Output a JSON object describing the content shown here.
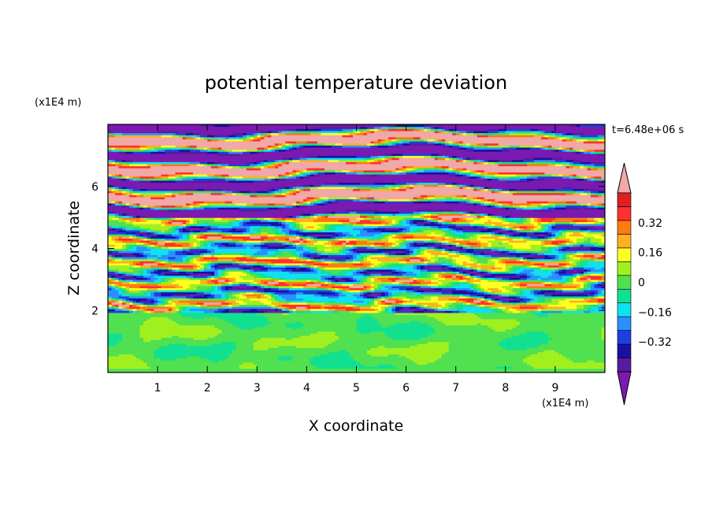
{
  "chart_data": {
    "type": "heatmap",
    "title": "potential temperature deviation",
    "xlabel": "X coordinate",
    "ylabel": "Z coordinate",
    "x_unit": "(x1E4 m)",
    "y_unit": "(x1E4 m)",
    "time_label": "t=6.48e+06 s",
    "xlim": [
      0,
      10
    ],
    "ylim": [
      0,
      8
    ],
    "x_ticks": [
      1,
      2,
      3,
      4,
      5,
      6,
      7,
      8,
      9
    ],
    "y_ticks": [
      2,
      4,
      6
    ],
    "colorbar": {
      "levels": [
        -0.48,
        -0.4,
        -0.32,
        -0.24,
        -0.16,
        -0.08,
        0,
        0.08,
        0.16,
        0.24,
        0.32,
        0.4,
        0.48
      ],
      "tick_labels": [
        "0.32",
        "0.16",
        "0",
        "−0.16",
        "−0.32"
      ],
      "tick_values": [
        0.32,
        0.16,
        0,
        -0.16,
        -0.32
      ],
      "colors_low_to_high": [
        "#5a1aa0",
        "#1c0fa0",
        "#1e3fe0",
        "#2a90ff",
        "#10e0f0",
        "#10e090",
        "#50e050",
        "#a0f020",
        "#ffff20",
        "#ffb020",
        "#ff7a10",
        "#ff3030",
        "#e02020"
      ],
      "under_color": "#7a1ab0",
      "over_color": "#f0a8a8",
      "extend": "both"
    },
    "bands": [
      {
        "z_range": [
          0,
          1.95
        ],
        "pattern": "weak turbulence, values near 0 to 0.08"
      },
      {
        "z_range": [
          1.95,
          5.0
        ],
        "pattern": "multicolored layered turbulence, full range"
      },
      {
        "z_range": [
          5.0,
          8.0
        ],
        "pattern": "alternating strong layers, below -0.48 and above 0.48"
      }
    ]
  }
}
